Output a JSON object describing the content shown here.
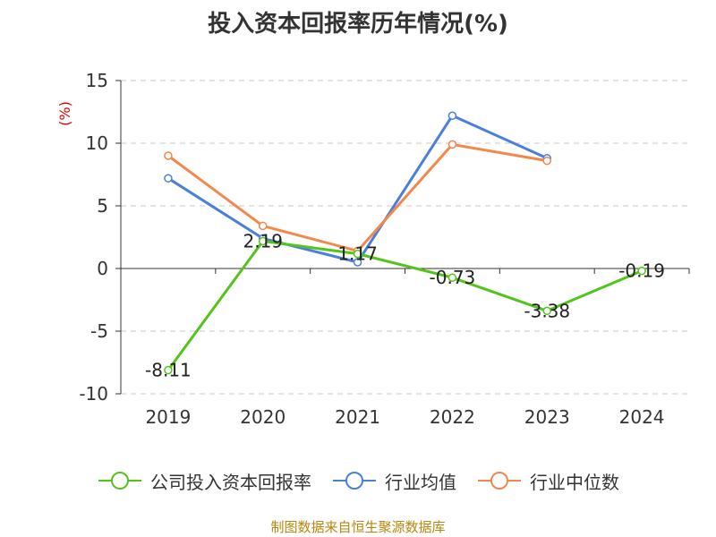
{
  "chart_data": {
    "type": "line",
    "title": "投入资本回报率历年情况(%)",
    "unit": "(%)",
    "categories": [
      "2019",
      "2020",
      "2021",
      "2022",
      "2023",
      "2024"
    ],
    "ylim": [
      -10,
      15
    ],
    "yticks": [
      "15",
      "10",
      "5",
      "0",
      "-5",
      "-10"
    ],
    "grid": true,
    "legend_position": "bottom",
    "series": [
      {
        "name": "公司投入资本回报率",
        "color": "#52c41a",
        "values": [
          -8.11,
          2.19,
          1.17,
          -0.73,
          -3.38,
          -0.19
        ],
        "labels": [
          "-8.11",
          "2.19",
          "1.17",
          "-0.73",
          "-3.38",
          "-0.19"
        ]
      },
      {
        "name": "行业均值",
        "color": "#4a7fdb",
        "values": [
          7.2,
          2.4,
          0.5,
          12.2,
          8.8,
          null
        ]
      },
      {
        "name": "行业中位数",
        "color": "#f4874b",
        "values": [
          9.0,
          3.4,
          1.4,
          9.9,
          8.6,
          null
        ]
      }
    ]
  },
  "source": "制图数据来自恒生聚源数据库"
}
